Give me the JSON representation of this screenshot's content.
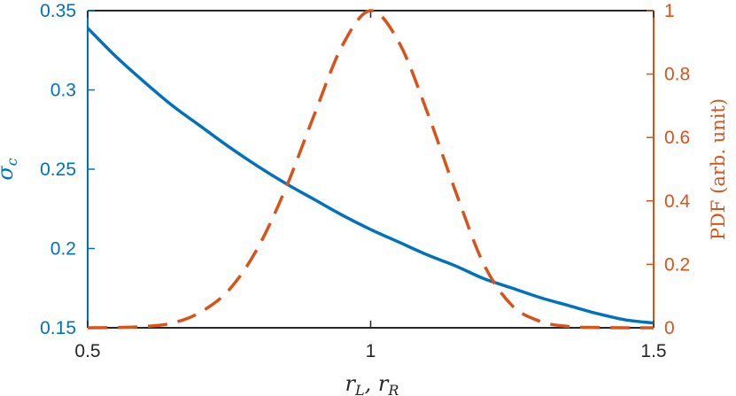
{
  "chart_data": {
    "type": "line",
    "xlabel": "r_L, r_R",
    "ylabel_left": "σ_c",
    "ylabel_right": "PDF (arb. unit)",
    "xlim": [
      0.5,
      1.5
    ],
    "ylim_left": [
      0.15,
      0.35
    ],
    "ylim_right": [
      0,
      1.0
    ],
    "x_ticks": [
      "0.5",
      "1",
      "1.5"
    ],
    "y_left_ticks": [
      "0.15",
      "0.2",
      "0.25",
      "0.3",
      "0.35"
    ],
    "y_right_ticks": [
      "0",
      "0.2",
      "0.4",
      "0.6",
      "0.8",
      "1"
    ],
    "grid": false,
    "series": [
      {
        "axis": "left",
        "style": "solid",
        "color": "#0072BD",
        "x": [
          0.5,
          0.55,
          0.6,
          0.65,
          0.7,
          0.75,
          0.8,
          0.85,
          0.9,
          0.95,
          1.0,
          1.05,
          1.1,
          1.15,
          1.2,
          1.25,
          1.3,
          1.35,
          1.4,
          1.45,
          1.5
        ],
        "values": [
          0.339,
          0.321,
          0.305,
          0.29,
          0.277,
          0.264,
          0.252,
          0.241,
          0.231,
          0.221,
          0.212,
          0.204,
          0.196,
          0.189,
          0.181,
          0.175,
          0.169,
          0.164,
          0.159,
          0.155,
          0.153
        ]
      },
      {
        "axis": "right",
        "style": "dashed",
        "color": "#D95319",
        "x": [
          0.5,
          0.55,
          0.6,
          0.65,
          0.7,
          0.75,
          0.8,
          0.85,
          0.9,
          0.95,
          1.0,
          1.05,
          1.1,
          1.15,
          1.2,
          1.25,
          1.3,
          1.35,
          1.4,
          1.45,
          1.5
        ],
        "values": [
          0.0,
          0.001,
          0.004,
          0.015,
          0.05,
          0.12,
          0.25,
          0.44,
          0.67,
          0.89,
          1.0,
          0.9,
          0.68,
          0.43,
          0.2,
          0.07,
          0.02,
          0.004,
          0.001,
          0.0,
          0.0
        ]
      }
    ]
  }
}
